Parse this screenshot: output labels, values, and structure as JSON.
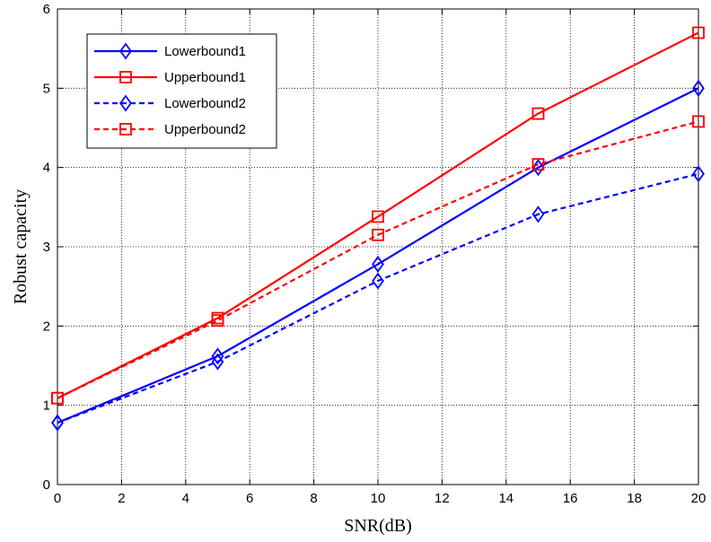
{
  "chart_data": {
    "type": "line",
    "title": "",
    "xlabel": "SNR(dB)",
    "ylabel": "Robust capacity",
    "xlim": [
      0,
      20
    ],
    "ylim": [
      0,
      6
    ],
    "xticks": [
      0,
      2,
      4,
      6,
      8,
      10,
      12,
      14,
      16,
      18,
      20
    ],
    "yticks": [
      0,
      1,
      2,
      3,
      4,
      5,
      6
    ],
    "grid": true,
    "legend_position": "top-left",
    "x": [
      0,
      5,
      10,
      15,
      20
    ],
    "series": [
      {
        "name": "Lowerbound1",
        "values": [
          0.78,
          1.62,
          2.78,
          4.0,
          5.0
        ],
        "color": "#0000ff",
        "dash": "solid",
        "marker": "diamond"
      },
      {
        "name": "Upperbound1",
        "values": [
          1.09,
          2.1,
          3.38,
          4.68,
          5.7
        ],
        "color": "#ff0000",
        "dash": "solid",
        "marker": "square"
      },
      {
        "name": "Lowerbound2",
        "values": [
          0.78,
          1.55,
          2.57,
          3.41,
          3.92
        ],
        "color": "#0000ff",
        "dash": "dashed",
        "marker": "diamond"
      },
      {
        "name": "Upperbound2",
        "values": [
          1.09,
          2.07,
          3.15,
          4.04,
          4.58
        ],
        "color": "#ff0000",
        "dash": "dashed",
        "marker": "square"
      }
    ]
  }
}
